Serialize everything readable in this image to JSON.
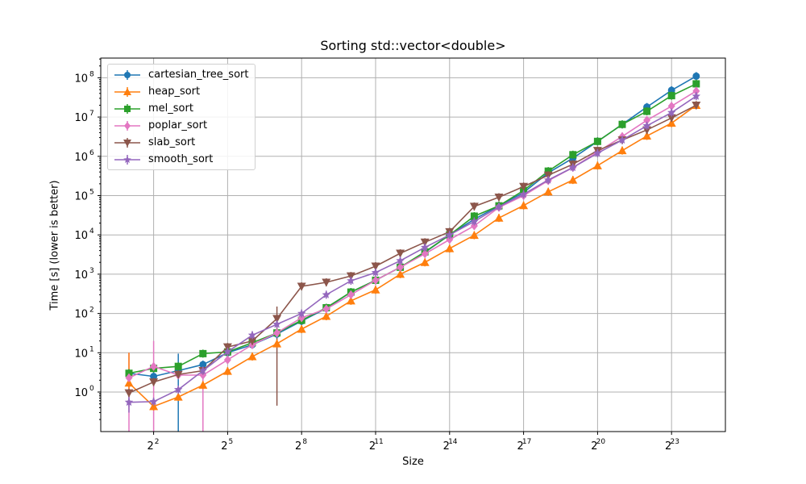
{
  "chart_data": {
    "type": "line",
    "title": "Sorting std::vector<double>",
    "xlabel": "Size",
    "ylabel": "Time [s] (lower is better)",
    "xscale": "log2",
    "yscale": "log10",
    "x_exponents": [
      1,
      2,
      3,
      4,
      5,
      6,
      7,
      8,
      9,
      10,
      11,
      12,
      13,
      14,
      15,
      16,
      17,
      18,
      19,
      20,
      21,
      22,
      23,
      24
    ],
    "x_tick_labels": [
      "2^2",
      "2^5",
      "2^8",
      "2^11",
      "2^14",
      "2^17",
      "2^20",
      "2^23"
    ],
    "y_tick_labels": [
      "10^0",
      "10^1",
      "10^2",
      "10^3",
      "10^4",
      "10^5",
      "10^6",
      "10^7",
      "10^8"
    ],
    "grid": true,
    "legend_position": "upper left",
    "series": [
      {
        "name": "cartesian_tree_sort",
        "color": "#1f77b4",
        "marker": "circle",
        "values": [
          3.0,
          2.5,
          3.5,
          5.0,
          10,
          16,
          30,
          64,
          135,
          350,
          700,
          1500,
          3600,
          10000,
          25000,
          55000,
          120000,
          380000,
          900000,
          2400000,
          6500000,
          18000000,
          48000000,
          110000000
        ]
      },
      {
        "name": "heap_sort",
        "color": "#ff7f0e",
        "marker": "triangle-up",
        "values": [
          1.7,
          0.43,
          0.75,
          1.5,
          3.4,
          8,
          17,
          40,
          85,
          210,
          400,
          1000,
          2000,
          4500,
          9800,
          27000,
          56000,
          125000,
          250000,
          580000,
          1400000,
          3300000,
          7000000,
          20000000
        ]
      },
      {
        "name": "mel_sort",
        "color": "#2ca02c",
        "marker": "square",
        "values": [
          3.0,
          4.0,
          4.5,
          9.5,
          10.5,
          18,
          32,
          67,
          140,
          350,
          700,
          1500,
          3700,
          10000,
          30000,
          55000,
          135000,
          420000,
          1100000,
          2400000,
          6500000,
          14000000,
          35000000,
          70000000
        ]
      },
      {
        "name": "poplar_sort",
        "color": "#e377c2",
        "marker": "diamond",
        "values": [
          2.3,
          4.5,
          2.7,
          2.7,
          6.6,
          16,
          32,
          78,
          130,
          300,
          700,
          1500,
          3300,
          7600,
          17000,
          50000,
          100000,
          240000,
          520000,
          1300000,
          3200000,
          8300000,
          19000000,
          46000000
        ]
      },
      {
        "name": "slab_sort",
        "color": "#8c564b",
        "marker": "triangle-down",
        "values": [
          0.95,
          1.8,
          2.8,
          3.5,
          14,
          20,
          74,
          490,
          620,
          900,
          1600,
          3400,
          6500,
          12000,
          53000,
          91000,
          170000,
          330000,
          630000,
          1400000,
          2600000,
          4700000,
          9500000,
          20000000
        ]
      },
      {
        "name": "smooth_sort",
        "color": "#9467bd",
        "marker": "star",
        "values": [
          0.55,
          0.57,
          1.15,
          3.5,
          10.6,
          28,
          53,
          100,
          300,
          680,
          1100,
          2200,
          4800,
          10000,
          22000,
          52000,
          108000,
          250000,
          520000,
          1200000,
          2600000,
          6000000,
          13000000,
          34000000
        ]
      }
    ],
    "error_bars": [
      {
        "series": "poplar_sort",
        "x_exponent": 1,
        "low": 0.05,
        "high": 10
      },
      {
        "series": "heap_sort",
        "x_exponent": 1,
        "low": 1.0,
        "high": 10
      },
      {
        "series": "poplar_sort",
        "x_exponent": 2,
        "low": 0.05,
        "high": 20
      },
      {
        "series": "cartesian_tree_sort",
        "x_exponent": 3,
        "low": 0.05,
        "high": 9.5
      },
      {
        "series": "poplar_sort",
        "x_exponent": 4,
        "low": 0.05,
        "high": 3.0
      },
      {
        "series": "slab_sort",
        "x_exponent": 7,
        "low": 0.45,
        "high": 150
      },
      {
        "series": "smooth_sort",
        "x_exponent": 1,
        "low": 0.3,
        "high": 0.9
      }
    ]
  }
}
